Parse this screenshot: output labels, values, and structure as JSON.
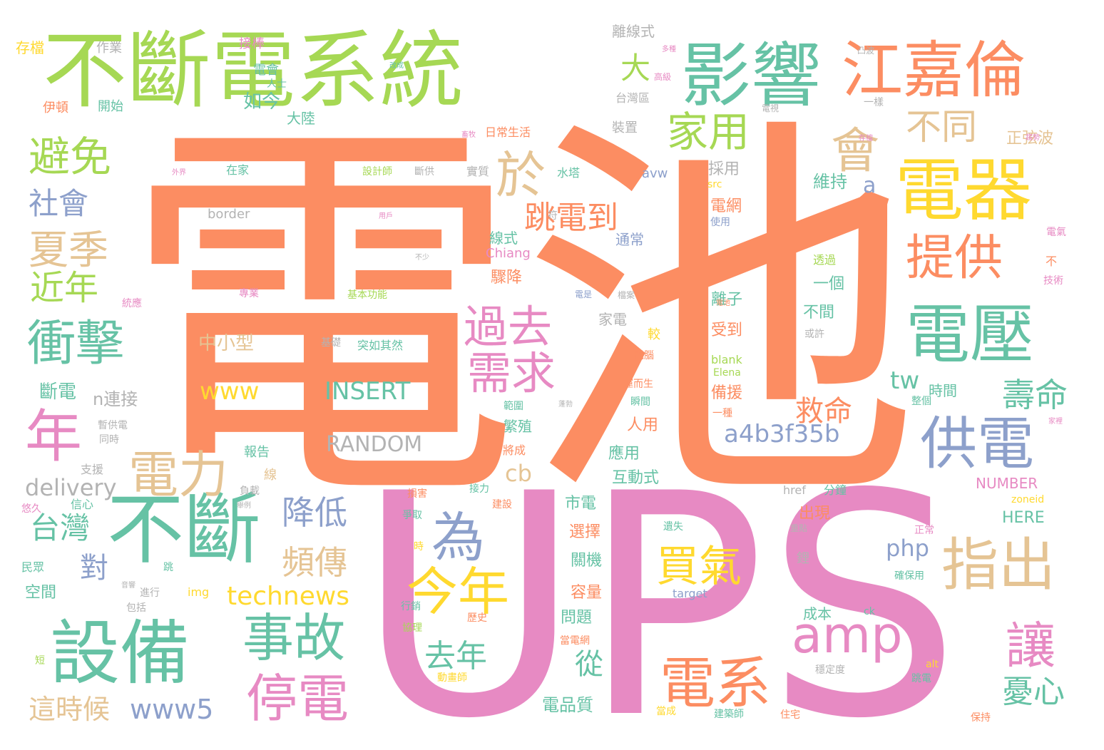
{
  "colors": {
    "orange": "#fc8d62",
    "pink": "#e78ac3",
    "green": "#66c2a5",
    "lime": "#a6d854",
    "yellow": "#ffd92f",
    "tan": "#e5c494",
    "blue": "#8da0cb",
    "gray": "#b3b3b3"
  },
  "words": [
    {
      "text": "電池",
      "color": "orange"
    },
    {
      "text": "UPS",
      "color": "pink"
    },
    {
      "text": "不斷電系統",
      "color": "lime"
    },
    {
      "text": "影響",
      "color": "green"
    },
    {
      "text": "江嘉倫",
      "color": "orange"
    },
    {
      "text": "電器",
      "color": "yellow"
    },
    {
      "text": "電壓",
      "color": "green"
    },
    {
      "text": "供電",
      "color": "blue"
    },
    {
      "text": "提供",
      "color": "orange"
    },
    {
      "text": "指出",
      "color": "tan"
    },
    {
      "text": "不斷",
      "color": "green"
    },
    {
      "text": "設備",
      "color": "green"
    },
    {
      "text": "會",
      "color": "tan"
    },
    {
      "text": "於",
      "color": "tan"
    },
    {
      "text": "避免",
      "color": "lime"
    },
    {
      "text": "年",
      "color": "pink"
    },
    {
      "text": "電力",
      "color": "tan"
    },
    {
      "text": "為",
      "color": "blue"
    },
    {
      "text": "今年",
      "color": "yellow"
    },
    {
      "text": "amp",
      "color": "pink"
    },
    {
      "text": "電系",
      "color": "orange"
    },
    {
      "text": "讓",
      "color": "pink"
    },
    {
      "text": "事故",
      "color": "green"
    },
    {
      "text": "停電",
      "color": "pink"
    },
    {
      "text": "衝擊",
      "color": "green"
    },
    {
      "text": "過去",
      "color": "pink"
    },
    {
      "text": "需求",
      "color": "pink"
    },
    {
      "text": "買氣",
      "color": "yellow"
    },
    {
      "text": "夏季",
      "color": "tan"
    },
    {
      "text": "家用",
      "color": "lime"
    },
    {
      "text": "不同",
      "color": "tan"
    },
    {
      "text": "大",
      "color": "lime"
    },
    {
      "text": "跳電到",
      "color": "orange"
    },
    {
      "text": "近年",
      "color": "lime"
    },
    {
      "text": "社會",
      "color": "blue"
    },
    {
      "text": "頻傳",
      "color": "tan"
    },
    {
      "text": "降低",
      "color": "blue"
    },
    {
      "text": "台灣",
      "color": "green"
    },
    {
      "text": "對",
      "color": "blue"
    },
    {
      "text": "technews",
      "color": "yellow"
    },
    {
      "text": "www5",
      "color": "blue"
    },
    {
      "text": "www",
      "color": "yellow"
    },
    {
      "text": "INSERT",
      "color": "green"
    },
    {
      "text": "RANDOM",
      "color": "gray"
    },
    {
      "text": "去年",
      "color": "green"
    },
    {
      "text": "壽命",
      "color": "green"
    },
    {
      "text": "救命",
      "color": "orange"
    },
    {
      "text": "a4b3f35b",
      "color": "blue"
    },
    {
      "text": "憂心",
      "color": "green"
    },
    {
      "text": "這時候",
      "color": "tan"
    },
    {
      "text": "delivery",
      "color": "gray"
    },
    {
      "text": "從",
      "color": "green"
    },
    {
      "text": "tw",
      "color": "green"
    },
    {
      "text": "n連接",
      "color": "gray"
    },
    {
      "text": "斷電",
      "color": "green"
    },
    {
      "text": "cb",
      "color": "tan"
    },
    {
      "text": "php",
      "color": "blue"
    },
    {
      "text": "中小型",
      "color": "tan"
    },
    {
      "text": "如今",
      "color": "green"
    },
    {
      "text": "電會",
      "color": "green"
    },
    {
      "text": "大陸",
      "color": "green"
    },
    {
      "text": "人士",
      "color": "green"
    },
    {
      "text": "作業",
      "color": "gray"
    },
    {
      "text": "接棒",
      "color": "pink"
    },
    {
      "text": "存檔",
      "color": "yellow"
    },
    {
      "text": "伊頓",
      "color": "orange"
    },
    {
      "text": "開始",
      "color": "green"
    },
    {
      "text": "離線式",
      "color": "gray"
    },
    {
      "text": "台灣區",
      "color": "gray"
    },
    {
      "text": "裝置",
      "color": "gray"
    },
    {
      "text": "實質",
      "color": "gray"
    },
    {
      "text": "設計師",
      "color": "lime"
    },
    {
      "text": "斷供",
      "color": "gray"
    },
    {
      "text": "在家",
      "color": "green"
    },
    {
      "text": "日常生活",
      "color": "orange"
    },
    {
      "text": "a",
      "color": "blue"
    },
    {
      "text": "正弦波",
      "color": "tan"
    },
    {
      "text": "維持",
      "color": "green"
    },
    {
      "text": "採用",
      "color": "gray"
    },
    {
      "text": "電網",
      "color": "orange"
    },
    {
      "text": "avw",
      "color": "blue"
    },
    {
      "text": "水塔",
      "color": "green"
    },
    {
      "text": "border",
      "color": "gray"
    },
    {
      "text": "線式",
      "color": "green"
    },
    {
      "text": "通常",
      "color": "blue"
    },
    {
      "text": "Chiang",
      "color": "pink"
    },
    {
      "text": "驟降",
      "color": "orange"
    },
    {
      "text": "一個",
      "color": "green"
    },
    {
      "text": "透過",
      "color": "lime"
    },
    {
      "text": "離子",
      "color": "green"
    },
    {
      "text": "不間",
      "color": "green"
    },
    {
      "text": "受到",
      "color": "orange"
    },
    {
      "text": "家電",
      "color": "gray"
    },
    {
      "text": "較",
      "color": "yellow"
    },
    {
      "text": "基礎",
      "color": "gray"
    },
    {
      "text": "突如其然",
      "color": "green"
    },
    {
      "text": "時間",
      "color": "green"
    },
    {
      "text": "備援",
      "color": "orange"
    },
    {
      "text": "blank",
      "color": "lime"
    },
    {
      "text": "Elena",
      "color": "lime"
    },
    {
      "text": "報告",
      "color": "green"
    },
    {
      "text": "支援",
      "color": "gray"
    },
    {
      "text": "線",
      "color": "tan"
    },
    {
      "text": "應用",
      "color": "green"
    },
    {
      "text": "人用",
      "color": "orange"
    },
    {
      "text": "互動式",
      "color": "green"
    },
    {
      "text": "NUMBER",
      "color": "pink"
    },
    {
      "text": "HERE",
      "color": "green"
    },
    {
      "text": "市電",
      "color": "green"
    },
    {
      "text": "選擇",
      "color": "orange"
    },
    {
      "text": "關機",
      "color": "green"
    },
    {
      "text": "出現",
      "color": "orange"
    },
    {
      "text": "容量",
      "color": "orange"
    },
    {
      "text": "問題",
      "color": "green"
    },
    {
      "text": "成本",
      "color": "green"
    },
    {
      "text": "電品質",
      "color": "green"
    },
    {
      "text": "空間",
      "color": "green"
    },
    {
      "text": "img",
      "color": "yellow"
    },
    {
      "text": "target",
      "color": "blue"
    },
    {
      "text": "href",
      "color": "gray"
    },
    {
      "text": "分鐘",
      "color": "green"
    },
    {
      "text": "zoneid",
      "color": "yellow"
    },
    {
      "text": "src",
      "color": "yellow"
    },
    {
      "text": "使用",
      "color": "blue"
    },
    {
      "text": "技術",
      "color": "pink"
    },
    {
      "text": "正常",
      "color": "pink"
    },
    {
      "text": "電氣",
      "color": "pink"
    },
    {
      "text": "或許",
      "color": "gray"
    },
    {
      "text": "電腦",
      "color": "orange"
    },
    {
      "text": "運而生",
      "color": "orange"
    },
    {
      "text": "瞬間",
      "color": "green"
    },
    {
      "text": "範圍",
      "color": "green"
    },
    {
      "text": "一種",
      "color": "orange"
    },
    {
      "text": "整個",
      "color": "green"
    },
    {
      "text": "蓬勃",
      "color": "gray"
    },
    {
      "text": "建設",
      "color": "orange"
    },
    {
      "text": "接力",
      "color": "green"
    },
    {
      "text": "爭取",
      "color": "green"
    },
    {
      "text": "損害",
      "color": "orange"
    },
    {
      "text": "電池",
      "color": "orange"
    },
    {
      "text": "遺失",
      "color": "green"
    },
    {
      "text": "重點",
      "color": "gray"
    },
    {
      "text": "確保用",
      "color": "green"
    },
    {
      "text": "行銷",
      "color": "green"
    },
    {
      "text": "歷史",
      "color": "orange"
    },
    {
      "text": "協理",
      "color": "lime"
    },
    {
      "text": "當電網",
      "color": "orange"
    },
    {
      "text": "穩定度",
      "color": "gray"
    },
    {
      "text": "跳電",
      "color": "green"
    },
    {
      "text": "動畫師",
      "color": "yellow"
    },
    {
      "text": "alt",
      "color": "yellow"
    },
    {
      "text": "ck",
      "color": "green"
    },
    {
      "text": "當成",
      "color": "yellow"
    },
    {
      "text": "建築師",
      "color": "green"
    },
    {
      "text": "住宅",
      "color": "orange"
    },
    {
      "text": "保持",
      "color": "orange"
    },
    {
      "text": "民眾",
      "color": "green"
    },
    {
      "text": "悠久",
      "color": "pink"
    },
    {
      "text": "信心",
      "color": "green"
    },
    {
      "text": "負載",
      "color": "gray"
    },
    {
      "text": "舉例",
      "color": "gray"
    },
    {
      "text": "暫供電",
      "color": "gray"
    },
    {
      "text": "同時",
      "color": "gray"
    },
    {
      "text": "統應",
      "color": "pink"
    },
    {
      "text": "專業",
      "color": "pink"
    },
    {
      "text": "基本功能",
      "color": "lime"
    },
    {
      "text": "不少",
      "color": "gray"
    },
    {
      "text": "包括",
      "color": "gray"
    },
    {
      "text": "進行",
      "color": "gray"
    },
    {
      "text": "音響",
      "color": "gray"
    },
    {
      "text": "短",
      "color": "lime"
    },
    {
      "text": "跳",
      "color": "green"
    },
    {
      "text": "時",
      "color": "yellow"
    },
    {
      "text": "符",
      "color": "gray"
    },
    {
      "text": "用戶",
      "color": "pink"
    },
    {
      "text": "外界",
      "color": "pink"
    },
    {
      "text": "一樣",
      "color": "gray"
    },
    {
      "text": "凸波",
      "color": "gray"
    },
    {
      "text": "多種",
      "color": "pink"
    },
    {
      "text": "高級",
      "color": "pink"
    },
    {
      "text": "畜牧",
      "color": "pink"
    },
    {
      "text": "改成",
      "color": "green"
    },
    {
      "text": "存檔",
      "color": "pink"
    },
    {
      "text": "將成",
      "color": "orange"
    },
    {
      "text": "繁殖",
      "color": "green"
    },
    {
      "text": "電是",
      "color": "blue"
    },
    {
      "text": "檔案",
      "color": "gray"
    },
    {
      "text": "鋰",
      "color": "gray"
    },
    {
      "text": "不",
      "color": "orange"
    },
    {
      "text": "家裡",
      "color": "pink"
    },
    {
      "text": "趨勢",
      "color": "pink"
    },
    {
      "text": "電視",
      "color": "gray"
    }
  ]
}
